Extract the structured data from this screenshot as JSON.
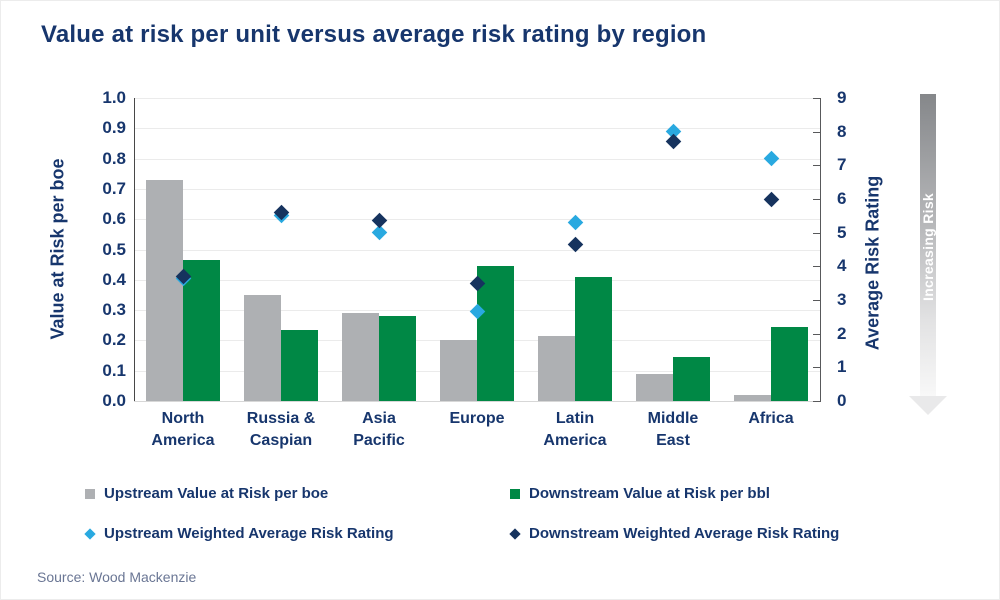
{
  "page": {
    "title": "Value at risk per unit versus average risk rating by region",
    "source": "Source: Wood Mackenzie"
  },
  "chart_data": {
    "type": "bar+scatter",
    "title": "Value at risk per unit versus average risk rating by region",
    "categories": [
      "North America",
      "Russia & Caspian",
      "Asia Pacific",
      "Europe",
      "Latin America",
      "Middle East",
      "Africa"
    ],
    "category_label_lines": [
      [
        "North",
        "America"
      ],
      [
        "Russia &",
        "Caspian"
      ],
      [
        "Asia",
        "Pacific"
      ],
      [
        "Europe"
      ],
      [
        "Latin",
        "America"
      ],
      [
        "Middle",
        "East"
      ],
      [
        "Africa"
      ]
    ],
    "left_axis": {
      "title": "Value at Risk per boe",
      "min": 0,
      "max": 1.0,
      "step": 0.1,
      "tick_labels": [
        "0.0",
        "0.1",
        "0.2",
        "0.3",
        "0.4",
        "0.5",
        "0.6",
        "0.7",
        "0.8",
        "0.9",
        "1.0"
      ],
      "grid": true
    },
    "right_axis": {
      "title": "Average Risk Rating",
      "min": 0,
      "max": 9,
      "step": 1,
      "tick_labels": [
        "0",
        "1",
        "2",
        "3",
        "4",
        "5",
        "6",
        "7",
        "8",
        "9"
      ]
    },
    "bar_series": [
      {
        "name": "Upstream Value at Risk per boe",
        "axis": "left",
        "color": "#aeb0b3",
        "values": [
          0.73,
          0.35,
          0.29,
          0.2,
          0.215,
          0.09,
          0.02
        ]
      },
      {
        "name": "Downstream Value at Risk per bbl",
        "axis": "left",
        "color": "#008845",
        "values": [
          0.465,
          0.235,
          0.28,
          0.445,
          0.41,
          0.145,
          0.245
        ]
      }
    ],
    "scatter_series": [
      {
        "name": "Upstream Weighted Average Risk Rating",
        "axis": "right",
        "color": "#29a9e0",
        "marker": "diamond",
        "values": [
          3.65,
          5.5,
          5.0,
          2.65,
          5.3,
          8.0,
          7.2
        ]
      },
      {
        "name": "Downstream Weighted Average Risk Rating",
        "axis": "right",
        "color": "#16335e",
        "marker": "diamond",
        "values": [
          3.7,
          5.6,
          5.35,
          3.5,
          4.65,
          7.7,
          6.0
        ]
      }
    ],
    "legend": [
      {
        "label": "Upstream Value at Risk per boe",
        "marker": "square",
        "color": "#aeb0b3"
      },
      {
        "label": "Downstream Value at Risk per bbl",
        "marker": "square",
        "color": "#008845"
      },
      {
        "label": "Upstream Weighted Average Risk Rating",
        "marker": "diamond",
        "color": "#29a9e0"
      },
      {
        "label": "Downstream Weighted Average Risk Rating",
        "marker": "diamond",
        "color": "#16335e"
      }
    ],
    "annotation": {
      "label": "Increasing Risk"
    },
    "colors": {
      "navy_text": "#17366d",
      "upstream_bar": "#aeb0b3",
      "downstream_bar": "#008845",
      "upstream_marker": "#29a9e0",
      "downstream_marker": "#16335e"
    }
  }
}
